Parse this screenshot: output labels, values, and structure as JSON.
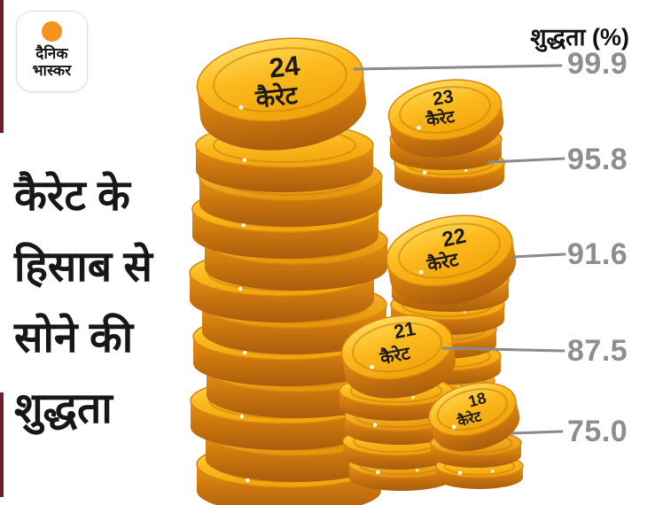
{
  "logo": {
    "line1": "दैनिक",
    "line2": "भास्कर"
  },
  "header": {
    "label": "शुद्धता (%)"
  },
  "title_lines": [
    "कैरेट के",
    "हिसाब से",
    "सोने की",
    "शुद्धता"
  ],
  "stacks": [
    {
      "karat": "24",
      "unit": "कैरेट",
      "purity": "99.9"
    },
    {
      "karat": "23",
      "unit": "कैरेट",
      "purity": "95.8"
    },
    {
      "karat": "22",
      "unit": "कैरेट",
      "purity": "91.6"
    },
    {
      "karat": "21",
      "unit": "कैरेट",
      "purity": "87.5"
    },
    {
      "karat": "18",
      "unit": "कैरेट",
      "purity": "75.0"
    }
  ],
  "colors": {
    "gold_face_light": "#FFE26A",
    "gold_face": "#FCBB1F",
    "gold_edge": "#C4700E",
    "number_gray": "#8E8E8E",
    "logo_orange": "#F6921E",
    "border_maroon": "#701F28",
    "label_black": "#1C1B15"
  },
  "chart_data": {
    "type": "bar",
    "title": "कैरेट के हिसाब से सोने की शुद्धता",
    "categories": [
      "24 कैरेट",
      "23 कैरेट",
      "22 कैरेट",
      "21 कैरेट",
      "18 कैरेट"
    ],
    "values": [
      99.9,
      95.8,
      91.6,
      87.5,
      75.0
    ],
    "ylabel": "शुद्धता (%)",
    "unit": "%",
    "ylim": [
      0,
      100
    ],
    "legend": "none",
    "grid": "off",
    "style": "pictorial coin stacks with leader lines to purity values"
  }
}
